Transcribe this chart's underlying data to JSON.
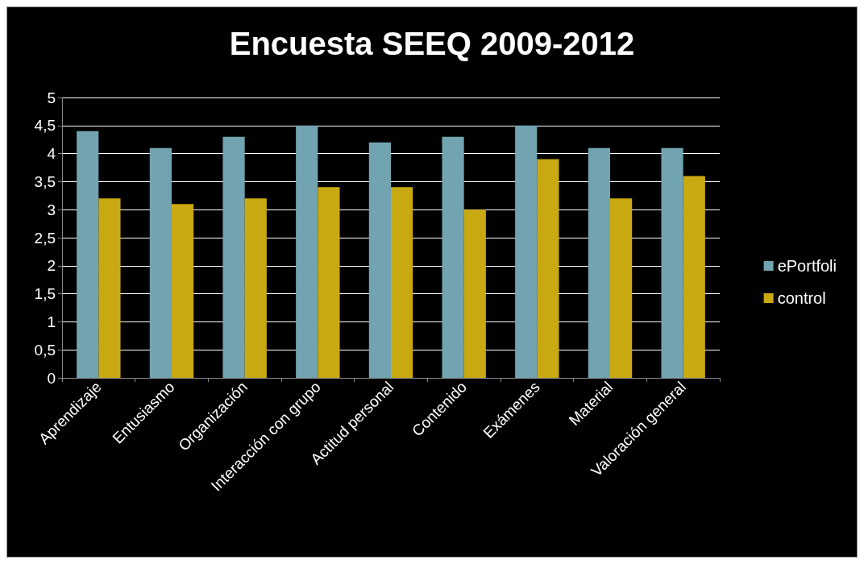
{
  "chart_data": {
    "type": "bar",
    "title": "Encuesta SEEQ 2009-2012",
    "categories": [
      "Aprendizaje",
      "Entusiasmo",
      "Organización",
      "Interacción con grupo",
      "Actitud personal",
      "Contenido",
      "Exámenes",
      "Material",
      "Valoración general"
    ],
    "series": [
      {
        "name": "ePortfoli",
        "color": "#72a3b1",
        "values": [
          4.4,
          4.1,
          4.3,
          4.5,
          4.2,
          4.3,
          4.5,
          4.1,
          4.1
        ]
      },
      {
        "name": "control",
        "color": "#c9a912",
        "values": [
          3.2,
          3.1,
          3.2,
          3.4,
          3.4,
          3.0,
          3.9,
          3.2,
          3.6
        ]
      }
    ],
    "ylim": [
      0,
      5
    ],
    "yticks": [
      0,
      {
        "value": 0.5,
        "label": "0,5"
      },
      1,
      {
        "value": 1.5,
        "label": "1,5"
      },
      2,
      {
        "value": 2.5,
        "label": "2,5"
      },
      3,
      {
        "value": 3.5,
        "label": "3,5"
      },
      4,
      {
        "value": 4.5,
        "label": "4,5"
      },
      5
    ],
    "grid": "y",
    "legend": "right"
  }
}
